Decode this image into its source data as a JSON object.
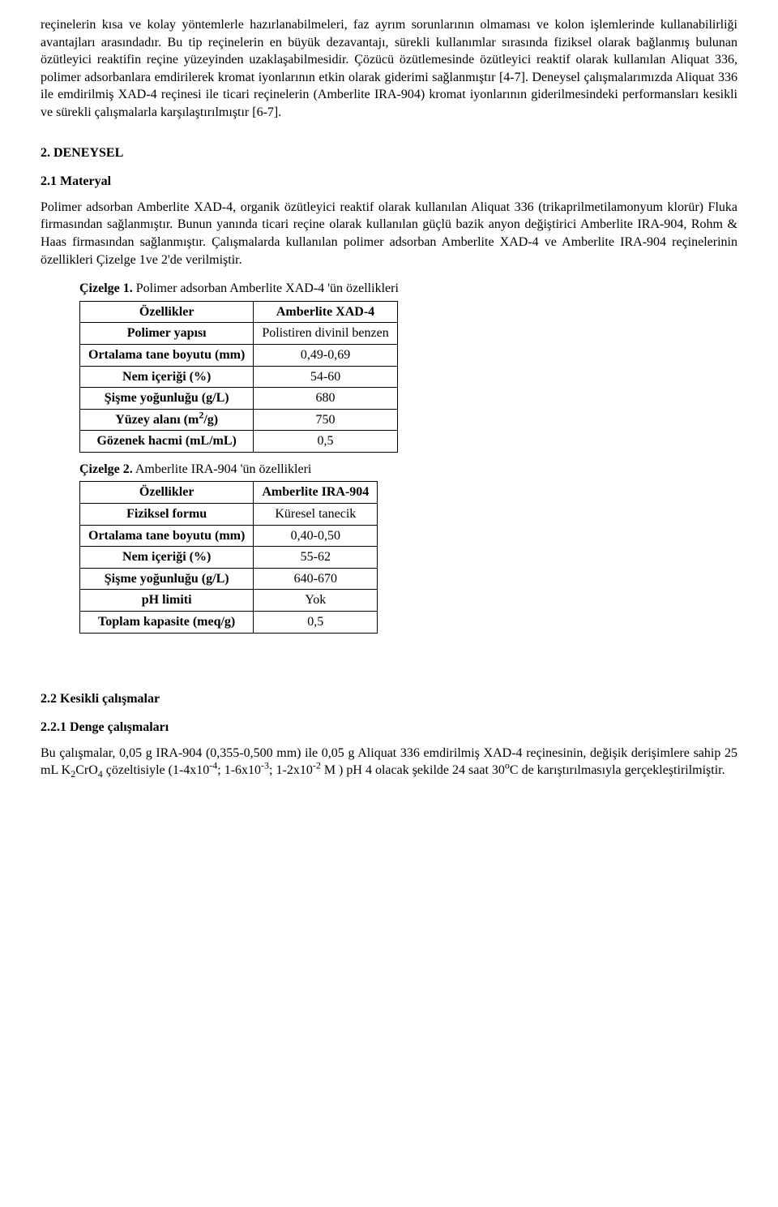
{
  "intro": {
    "para1": "reçinelerin kısa ve kolay yöntemlerle hazırlanabilmeleri, faz ayrım sorunlarının olmaması ve kolon işlemlerinde kullanabilirliği avantajları arasındadır. Bu tip reçinelerin en büyük dezavantajı, sürekli kullanımlar sırasında fiziksel olarak bağlanmış bulunan özütleyici reaktifin reçine yüzeyinden uzaklaşabilmesidir. Çözücü özütlemesinde özütleyici reaktif olarak kullanılan Aliquat 336, polimer adsorbanlara emdirilerek kromat iyonlarının etkin olarak giderimi sağlanmıştır [4-7]. Deneysel çalışmalarımızda Aliquat 336 ile emdirilmiş XAD-4 reçinesi ile ticari reçinelerin (Amberlite IRA-904) kromat iyonlarının giderilmesindeki performansları kesikli ve sürekli çalışmalarla karşılaştırılmıştır [6-7]."
  },
  "sections": {
    "s2": "2. DENEYSEL",
    "s21": "2.1 Materyal",
    "s21_para": "Polimer adsorban Amberlite XAD-4, organik özütleyici reaktif olarak kullanılan Aliquat 336 (trikaprilmetilamonyum klorür) Fluka firmasından sağlanmıştır. Bunun yanında ticari reçine olarak kullanılan güçlü bazik anyon değiştirici Amberlite IRA-904, Rohm & Haas firmasından sağlanmıştır. Çalışmalarda kullanılan polimer adsorban  Amberlite XAD-4 ve Amberlite IRA-904 reçinelerinin özellikleri Çizelge 1ve 2'de verilmiştir.",
    "s22": "2.2 Kesikli çalışmalar",
    "s221": "2.2.1 Denge çalışmaları"
  },
  "table1": {
    "caption_bold": "Çizelge 1.",
    "caption_rest": " Polimer adsorban Amberlite XAD-4 'ün özellikleri",
    "header_left": "Özellikler",
    "header_right": "Amberlite XAD-4",
    "rows": [
      {
        "label": "Polimer yapısı",
        "value": "Polistiren divinil benzen"
      },
      {
        "label": "Ortalama tane boyutu (mm)",
        "value": "0,49-0,69"
      },
      {
        "label": "Nem içeriği (%)",
        "value": "54-60"
      },
      {
        "label": "Şişme yoğunluğu (g/L)",
        "value": "680"
      },
      {
        "label_html": "Yüzey alanı (m<sup>2</sup>/g)",
        "value": "750"
      },
      {
        "label": "Gözenek hacmi (mL/mL)",
        "value": "0,5"
      }
    ]
  },
  "table2": {
    "caption_bold": "Çizelge 2.",
    "caption_rest": " Amberlite IRA-904 'ün özellikleri",
    "header_left": "Özellikler",
    "header_right": "Amberlite IRA-904",
    "rows": [
      {
        "label": "Fiziksel formu",
        "value": "Küresel tanecik"
      },
      {
        "label": "Ortalama tane boyutu (mm)",
        "value": "0,40-0,50"
      },
      {
        "label": "Nem içeriği (%)",
        "value": "55-62"
      },
      {
        "label": "Şişme yoğunluğu (g/L)",
        "value": "640-670"
      },
      {
        "label": "pH limiti",
        "value": "Yok"
      },
      {
        "label": "Toplam kapasite (meq/g)",
        "value": "0,5"
      }
    ]
  },
  "closing": {
    "para_html": "Bu çalışmalar, 0,05 g IRA-904 (0,355-0,500 mm) ile 0,05 g Aliquat 336 emdirilmiş XAD-4 reçinesinin, değişik derişimlere sahip  25 mL K<sub>2</sub>CrO<sub>4</sub> çözeltisiyle (1-4x10<sup>-4</sup>; 1-6x10<sup>-3</sup>;  1-2x10<sup>-2</sup> M ) pH 4 olacak şekilde 24 saat 30<sup>o</sup>C de karıştırılmasıyla gerçekleştirilmiştir."
  }
}
